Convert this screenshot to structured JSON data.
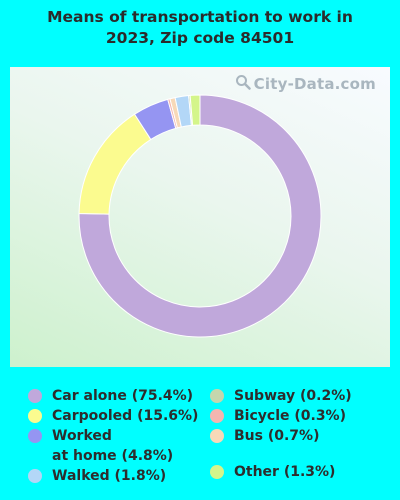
{
  "title": {
    "line1": "Means of transportation to work in",
    "line2": "2023, Zip code 84501"
  },
  "watermark": "City-Data.com",
  "chart_data": {
    "type": "pie",
    "subtype": "donut",
    "title": "Means of transportation to work in 2023, Zip code 84501",
    "legend_position": "bottom",
    "slices": [
      {
        "label": "Car alone (75.4%)",
        "value": 75.4,
        "color": "#c0a8db"
      },
      {
        "label": "Carpooled (15.6%)",
        "value": 15.6,
        "color": "#fbfb8f"
      },
      {
        "label": "Worked\nat home (4.8%)",
        "value": 4.8,
        "color": "#9595f2"
      },
      {
        "label": "Bicycle (0.3%)",
        "value": 0.3,
        "color": "#f4b6b0"
      },
      {
        "label": "Bus (0.7%)",
        "value": 0.7,
        "color": "#f7d9b8"
      },
      {
        "label": "Walked (1.8%)",
        "value": 1.8,
        "color": "#b3d7f7"
      },
      {
        "label": "Subway (0.2%)",
        "value": 0.2,
        "color": "#c5d6ad"
      },
      {
        "label": "Other (1.3%)",
        "value": 1.3,
        "color": "#d4f58a"
      }
    ],
    "legend_columns": [
      [
        "Car alone (75.4%)",
        "Carpooled (15.6%)",
        "Worked\nat home (4.8%)",
        "Walked (1.8%)"
      ],
      [
        "Subway (0.2%)",
        "Bicycle (0.3%)",
        "Bus (0.7%)",
        "Other (1.3%)"
      ]
    ]
  }
}
